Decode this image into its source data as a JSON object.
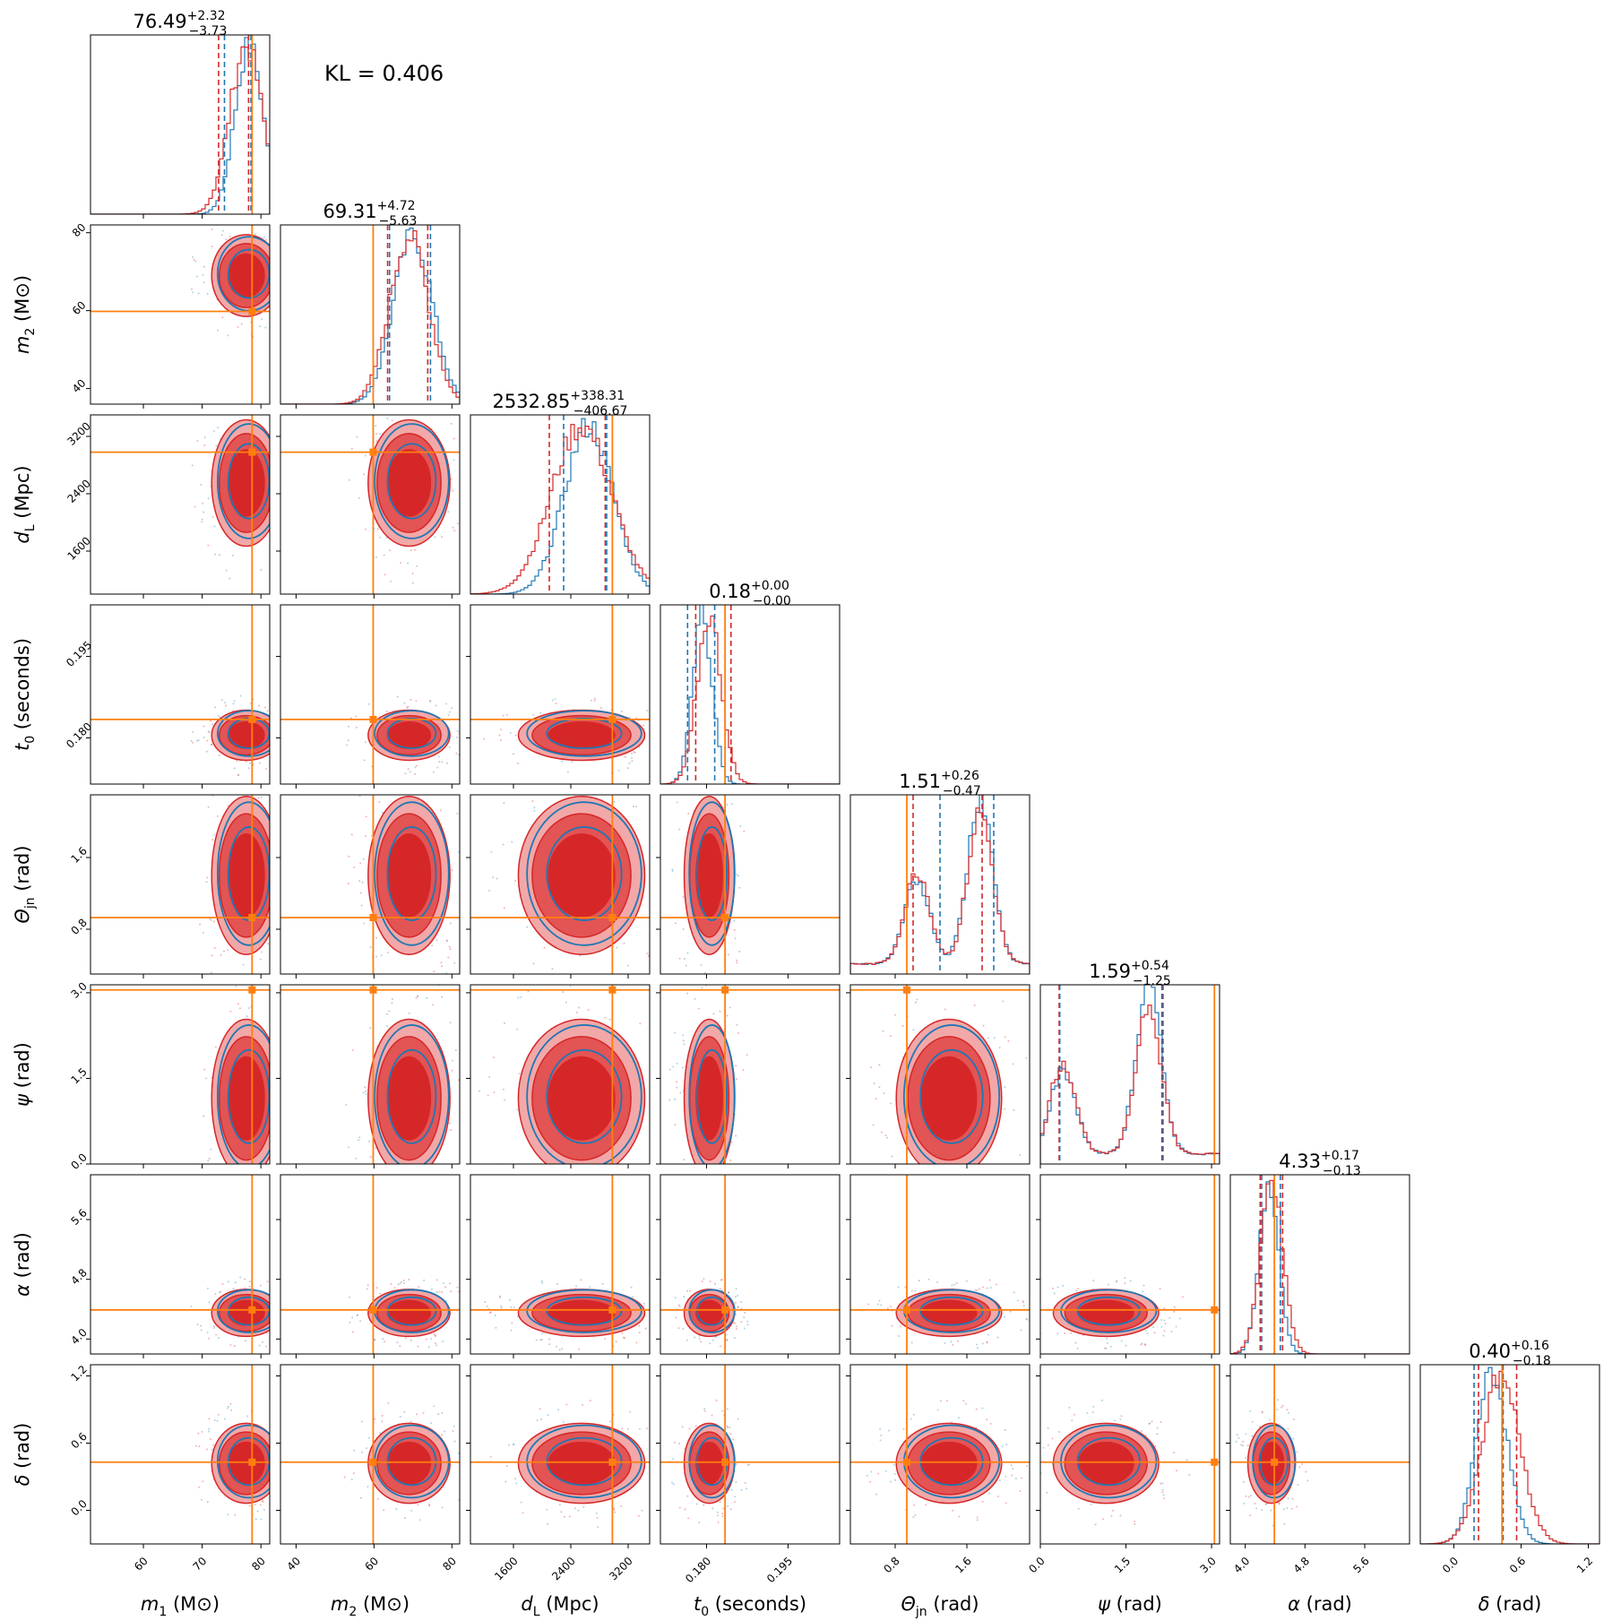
{
  "kl_text": "KL = 0.406",
  "colors": {
    "red": "#d62728",
    "blue": "#1f77b4",
    "truth": "#ff7f0e",
    "red_light": "#f2a8a8",
    "red_mid": "#e35454"
  },
  "chart_data": {
    "type": "corner",
    "title": "",
    "params": [
      {
        "key": "m1",
        "sym": "m",
        "sub": "1",
        "unit": "(M⊙)",
        "ticks": [
          60,
          70,
          80
        ],
        "tick_labels": [
          "60",
          "70",
          "80"
        ],
        "range": [
          51,
          81.5
        ],
        "truth": 78.5,
        "summary": {
          "median": "76.49",
          "plus": "+2.32",
          "minus": "−3.73"
        },
        "quantiles": {
          "red": [
            72.8,
            77.9
          ],
          "blue": [
            73.8,
            78.3
          ]
        },
        "hist": {
          "red_mu": 77.5,
          "red_sd": 2.8,
          "blue_mu": 78.0,
          "blue_sd": 2.4,
          "skew": "left"
        }
      },
      {
        "key": "m2",
        "sym": "m",
        "sub": "2",
        "unit": "(M⊙)",
        "ticks": [
          40,
          60,
          80
        ],
        "tick_labels": [
          "40",
          "60",
          "80"
        ],
        "range": [
          36,
          82
        ],
        "truth": 59.8,
        "summary": {
          "median": "69.31",
          "plus": "+4.72",
          "minus": "−5.63"
        },
        "quantiles": {
          "red": [
            63.5,
            73.8
          ],
          "blue": [
            64.0,
            74.5
          ]
        },
        "hist": {
          "red_mu": 69.0,
          "red_sd": 5.0,
          "blue_mu": 70.0,
          "blue_sd": 5.0
        }
      },
      {
        "key": "dL",
        "sym": "d",
        "sub": "L",
        "unit": "(Mpc)",
        "ticks": [
          1600,
          2400,
          3200
        ],
        "tick_labels": [
          "1600",
          "2400",
          "3200"
        ],
        "range": [
          1000,
          3500
        ],
        "truth": 2980,
        "summary": {
          "median": "2532.85",
          "plus": "+338.31",
          "minus": "−406.67"
        },
        "quantiles": {
          "red": [
            2100,
            2880
          ],
          "blue": [
            2300,
            2900
          ]
        },
        "hist": {
          "red_mu": 2550,
          "red_sd": 420,
          "blue_mu": 2650,
          "blue_sd": 340
        }
      },
      {
        "key": "t0",
        "sym": "t",
        "sub": "0",
        "unit": "(seconds)",
        "ticks": [
          0.18,
          0.195
        ],
        "tick_labels": [
          "0.180",
          "0.195"
        ],
        "range": [
          0.1715,
          0.2045
        ],
        "truth": 0.1834,
        "summary": {
          "median": "0.18",
          "plus": "+0.00",
          "minus": "−0.00"
        },
        "quantiles": {
          "red": [
            0.178,
            0.1845
          ],
          "blue": [
            0.1765,
            0.1815
          ]
        },
        "hist": {
          "red_mu": 0.1805,
          "red_sd": 0.0022,
          "blue_mu": 0.1792,
          "blue_sd": 0.0018
        }
      },
      {
        "key": "theta",
        "sym": "Θ",
        "sub": "jn",
        "unit": "(rad)",
        "ticks": [
          0.8,
          1.6
        ],
        "tick_labels": [
          "0.8",
          "1.6"
        ],
        "range": [
          0.3,
          2.3
        ],
        "truth": 0.93,
        "summary": {
          "median": "1.51",
          "plus": "+0.26",
          "minus": "−0.47"
        },
        "quantiles": {
          "red": [
            1.0,
            1.77
          ],
          "blue": [
            1.3,
            1.9
          ]
        },
        "hist": {
          "bimodal": [
            1.05,
            1.75
          ]
        }
      },
      {
        "key": "psi",
        "sym": "ψ",
        "sub": "",
        "unit": "(rad)",
        "ticks": [
          0.0,
          1.5,
          3.0
        ],
        "tick_labels": [
          "0.0",
          "1.5",
          "3.0"
        ],
        "range": [
          0,
          3.14
        ],
        "truth": 3.05,
        "summary": {
          "median": "1.59",
          "plus": "+0.54",
          "minus": "−1.25"
        },
        "quantiles": {
          "red": [
            0.33,
            2.13
          ],
          "blue": [
            0.34,
            2.15
          ]
        },
        "hist": {
          "bimodal": [
            0.4,
            1.9
          ]
        }
      },
      {
        "key": "alpha",
        "sym": "α",
        "sub": "",
        "unit": "(rad)",
        "ticks": [
          4.0,
          4.8,
          5.6
        ],
        "tick_labels": [
          "4.0",
          "4.8",
          "5.6"
        ],
        "range": [
          3.8,
          6.2
        ],
        "truth": 4.39,
        "summary": {
          "median": "4.33",
          "plus": "+0.17",
          "minus": "−0.13"
        },
        "quantiles": {
          "red": [
            4.2,
            4.5
          ],
          "blue": [
            4.22,
            4.47
          ]
        },
        "hist": {
          "red_mu": 4.35,
          "red_sd": 0.15,
          "blue_mu": 4.32,
          "blue_sd": 0.13
        }
      },
      {
        "key": "delta",
        "sym": "δ",
        "sub": "",
        "unit": "(rad)",
        "ticks": [
          0.0,
          0.6,
          1.2
        ],
        "tick_labels": [
          "0.0",
          "0.6",
          "1.2"
        ],
        "range": [
          -0.3,
          1.3
        ],
        "truth": 0.43,
        "summary": {
          "median": "0.40",
          "plus": "+0.16",
          "minus": "−0.18"
        },
        "quantiles": {
          "red": [
            0.22,
            0.56
          ],
          "blue": [
            0.18,
            0.44
          ]
        },
        "hist": {
          "red_mu": 0.42,
          "red_sd": 0.17,
          "blue_mu": 0.34,
          "blue_sd": 0.14
        }
      }
    ],
    "lower_panels": "2d posterior density contours (red filled: 1σ/2σ/3σ; blue line contours) with scatter points and orange truth crosshair"
  }
}
